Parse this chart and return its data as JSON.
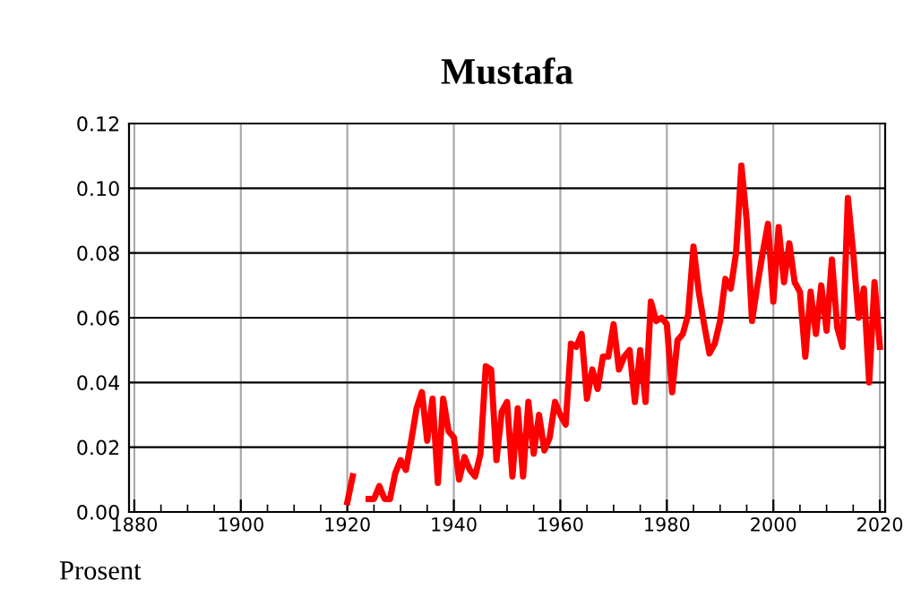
{
  "chart_data": {
    "type": "line",
    "title": "Mustafa",
    "annotations": [
      "Prosent"
    ],
    "x": [
      1920,
      1921,
      1922,
      1923,
      1924,
      1925,
      1926,
      1927,
      1928,
      1929,
      1930,
      1931,
      1932,
      1933,
      1934,
      1935,
      1936,
      1937,
      1938,
      1939,
      1940,
      1941,
      1942,
      1943,
      1944,
      1945,
      1946,
      1947,
      1948,
      1949,
      1950,
      1951,
      1952,
      1953,
      1954,
      1955,
      1956,
      1957,
      1958,
      1959,
      1960,
      1961,
      1962,
      1963,
      1964,
      1965,
      1966,
      1967,
      1968,
      1969,
      1970,
      1971,
      1972,
      1973,
      1974,
      1975,
      1976,
      1977,
      1978,
      1979,
      1980,
      1981,
      1982,
      1983,
      1984,
      1985,
      1986,
      1987,
      1988,
      1989,
      1990,
      1991,
      1992,
      1993,
      1994,
      1995,
      1996,
      1997,
      1998,
      1999,
      2000,
      2001,
      2002,
      2003,
      2004,
      2005,
      2006,
      2007,
      2008,
      2009,
      2010,
      2011,
      2012,
      2013,
      2014,
      2015,
      2016,
      2017,
      2018,
      2019,
      2020
    ],
    "series": [
      {
        "color": "#ff0000",
        "values": [
          0.003,
          0.011,
          null,
          null,
          0.004,
          0.004,
          0.008,
          0.004,
          0.004,
          0.012,
          0.016,
          0.013,
          0.022,
          0.032,
          0.037,
          0.022,
          0.035,
          0.009,
          0.035,
          0.025,
          0.023,
          0.01,
          0.017,
          0.013,
          0.011,
          0.018,
          0.045,
          0.044,
          0.016,
          0.031,
          0.034,
          0.011,
          0.032,
          0.011,
          0.034,
          0.018,
          0.03,
          0.019,
          0.023,
          0.034,
          0.03,
          0.027,
          0.052,
          0.051,
          0.055,
          0.035,
          0.044,
          0.038,
          0.048,
          0.048,
          0.058,
          0.044,
          0.048,
          0.05,
          0.034,
          0.05,
          0.034,
          0.065,
          0.059,
          0.06,
          0.058,
          0.037,
          0.053,
          0.055,
          0.061,
          0.082,
          0.068,
          0.058,
          0.049,
          0.052,
          0.059,
          0.072,
          0.069,
          0.08,
          0.107,
          0.09,
          0.059,
          0.07,
          0.08,
          0.089,
          0.065,
          0.088,
          0.071,
          0.083,
          0.071,
          0.068,
          0.048,
          0.068,
          0.055,
          0.07,
          0.056,
          0.078,
          0.057,
          0.051,
          0.097,
          0.08,
          0.06,
          0.069,
          0.04,
          0.071,
          0.051
        ]
      }
    ],
    "xlim": [
      1879,
      2021
    ],
    "xticks": [
      1880,
      1900,
      1920,
      1940,
      1960,
      1980,
      2000,
      2020
    ],
    "ylim": [
      0,
      0.12
    ],
    "yticks": [
      {
        "value": 0,
        "label": "0.00"
      },
      {
        "value": 0.02,
        "label": "0.02"
      },
      {
        "value": 0.04,
        "label": "0.04"
      },
      {
        "value": 0.06,
        "label": "0.06"
      },
      {
        "value": 0.08,
        "label": "0.08"
      },
      {
        "value": 0.1,
        "label": "0.10"
      },
      {
        "value": 0.12,
        "label": "0.12"
      }
    ],
    "grid": true,
    "legend": false,
    "marker": "none",
    "line_style": "solid"
  }
}
